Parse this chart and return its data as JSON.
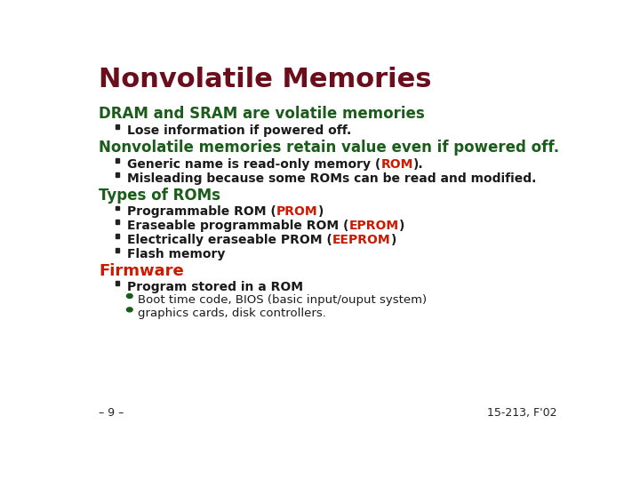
{
  "title": "Nonvolatile Memories",
  "title_color": "#6b0d1a",
  "background_color": "#ffffff",
  "heading1": "DRAM and SRAM are volatile memories",
  "heading1_color": "#1a5c1a",
  "bullet1": "Lose information if powered off.",
  "heading2": "Nonvolatile memories retain value even if powered off.",
  "heading2_color": "#1a5c1a",
  "bullet2b": "Misleading because some ROMs can be read and modified.",
  "heading3": "Types of ROMs",
  "heading3_color": "#1a5c1a",
  "bullet3d": "Flash memory",
  "heading4": "Firmware",
  "heading4_color": "#cc1a00",
  "bullet4a": "Program stored in a ROM",
  "subbullet4a1": "Boot time code, BIOS (basic input/ouput system)",
  "subbullet4a2": "graphics cards, disk controllers.",
  "footer_left": "– 9 –",
  "footer_right": "15-213, F'02",
  "footer_color": "#222222",
  "bullet_color": "#1a1a1a",
  "bullet_sq_color": "#222222",
  "dot_color": "#1a5c1a",
  "red_color": "#cc1a00",
  "dark_color": "#1a1a1a"
}
